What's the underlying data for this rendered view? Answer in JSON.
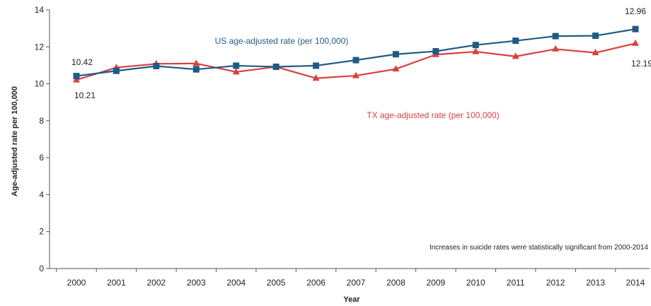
{
  "chart_data": {
    "type": "line",
    "xlabel": "Year",
    "ylabel": "Age-adjusted rate per 100,000",
    "ylim": [
      0,
      14
    ],
    "yticks": [
      "0",
      "2",
      "4",
      "6",
      "8",
      "10",
      "12",
      "14"
    ],
    "categories": [
      "2000",
      "2001",
      "2002",
      "2003",
      "2004",
      "2005",
      "2006",
      "2007",
      "2008",
      "2009",
      "2010",
      "2011",
      "2012",
      "2013",
      "2014"
    ],
    "grid": false,
    "series": [
      {
        "name": "US age-adjusted rate (per 100,000)",
        "marker": "square",
        "color": "#1f5a85",
        "values": [
          10.42,
          10.7,
          10.96,
          10.78,
          10.98,
          10.92,
          10.98,
          11.28,
          11.6,
          11.76,
          12.1,
          12.33,
          12.58,
          12.6,
          12.96
        ]
      },
      {
        "name": "TX age-adjusted rate (per 100,000)",
        "marker": "triangle",
        "color": "#d9403f",
        "values": [
          10.21,
          10.88,
          11.08,
          11.1,
          10.64,
          10.92,
          10.3,
          10.44,
          10.8,
          11.58,
          11.74,
          11.48,
          11.88,
          11.68,
          12.19
        ]
      }
    ],
    "data_labels": {
      "us_start": "10.42",
      "tx_start": "10.21",
      "us_end": "12.96",
      "tx_end": "12.19"
    },
    "note": "Increases in suicide rates were statistically significant from 2000-2014"
  }
}
